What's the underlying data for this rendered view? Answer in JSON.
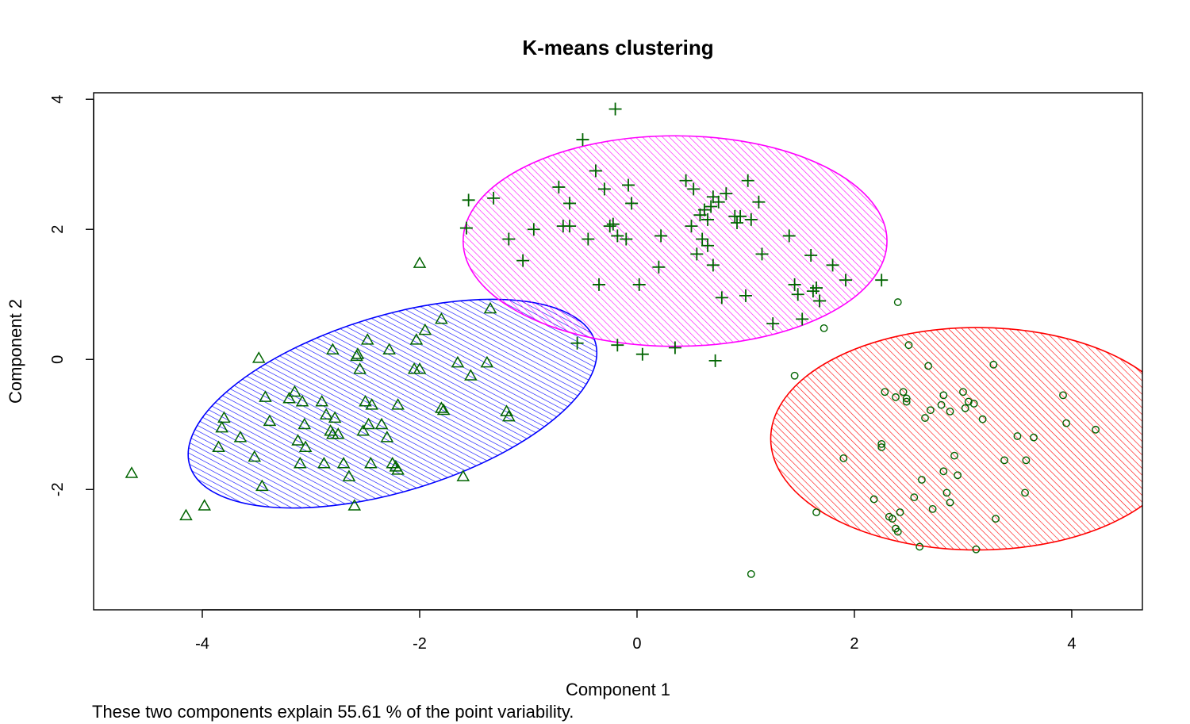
{
  "chart_data": {
    "type": "scatter",
    "title": "K-means clustering",
    "xlabel": "Component 1",
    "ylabel": "Component 2",
    "caption": "These two components explain 55.61 % of the point variability.",
    "xlim": [
      -5.0,
      4.65
    ],
    "ylim": [
      -3.85,
      4.1
    ],
    "xticks": [
      -4,
      -2,
      0,
      2,
      4
    ],
    "yticks": [
      -2,
      0,
      2,
      4
    ],
    "xtick_labels": [
      "-4",
      "-2",
      "0",
      "2",
      "4"
    ],
    "ytick_labels": [
      "-2",
      "0",
      "2",
      "4"
    ],
    "grid": false,
    "legend": "none",
    "point_color": "#006400",
    "clusters": [
      {
        "marker": "triangle",
        "ellipse_color": "#0000ff",
        "ellipse": {
          "cx": -2.25,
          "cy": -0.68,
          "rx": 1.95,
          "ry": 1.35,
          "angle_deg": 17
        },
        "points": [
          [
            -4.65,
            -1.75
          ],
          [
            -4.15,
            -2.4
          ],
          [
            -3.98,
            -2.25
          ],
          [
            -3.85,
            -1.35
          ],
          [
            -3.82,
            -1.05
          ],
          [
            -3.8,
            -0.9
          ],
          [
            -3.65,
            -1.2
          ],
          [
            -3.52,
            -1.5
          ],
          [
            -3.48,
            0.02
          ],
          [
            -3.45,
            -1.95
          ],
          [
            -3.42,
            -0.58
          ],
          [
            -3.38,
            -0.95
          ],
          [
            -3.2,
            -0.6
          ],
          [
            -3.15,
            -0.5
          ],
          [
            -3.12,
            -1.25
          ],
          [
            -3.1,
            -1.6
          ],
          [
            -3.08,
            -0.65
          ],
          [
            -3.06,
            -1.0
          ],
          [
            -3.05,
            -1.35
          ],
          [
            -2.9,
            -0.65
          ],
          [
            -2.88,
            -1.6
          ],
          [
            -2.86,
            -0.85
          ],
          [
            -2.82,
            -1.1
          ],
          [
            -2.8,
            0.15
          ],
          [
            -2.8,
            -1.15
          ],
          [
            -2.78,
            -0.9
          ],
          [
            -2.75,
            -1.15
          ],
          [
            -2.7,
            -1.6
          ],
          [
            -2.65,
            -1.8
          ],
          [
            -2.6,
            -2.25
          ],
          [
            -2.58,
            0.05
          ],
          [
            -2.57,
            0.08
          ],
          [
            -2.55,
            -0.15
          ],
          [
            -2.52,
            -1.1
          ],
          [
            -2.5,
            -0.65
          ],
          [
            -2.48,
            0.3
          ],
          [
            -2.47,
            -1.0
          ],
          [
            -2.45,
            -1.6
          ],
          [
            -2.44,
            -0.7
          ],
          [
            -2.35,
            -1.0
          ],
          [
            -2.3,
            -1.2
          ],
          [
            -2.28,
            0.15
          ],
          [
            -2.25,
            -1.6
          ],
          [
            -2.2,
            -1.7
          ],
          [
            -2.22,
            -1.65
          ],
          [
            -2.05,
            -0.15
          ],
          [
            -2.2,
            -0.7
          ],
          [
            -2.03,
            0.3
          ],
          [
            -2.0,
            1.48
          ],
          [
            -2.0,
            -0.15
          ],
          [
            -1.95,
            0.45
          ],
          [
            -1.8,
            0.62
          ],
          [
            -1.8,
            -0.75
          ],
          [
            -1.78,
            -0.78
          ],
          [
            -1.65,
            -0.05
          ],
          [
            -1.6,
            -1.8
          ],
          [
            -1.53,
            -0.25
          ],
          [
            -1.38,
            -0.05
          ],
          [
            -1.35,
            0.78
          ],
          [
            -1.2,
            -0.8
          ],
          [
            -1.18,
            -0.88
          ]
        ]
      },
      {
        "marker": "plus",
        "ellipse_color": "#ff00ff",
        "ellipse": {
          "cx": 0.35,
          "cy": 1.82,
          "rx": 1.95,
          "ry": 1.95,
          "angle_deg": 0,
          "ry_scale": 0.83
        },
        "points": [
          [
            -0.2,
            3.85
          ],
          [
            -0.5,
            3.38
          ],
          [
            -0.38,
            2.9
          ],
          [
            -0.3,
            2.62
          ],
          [
            -0.08,
            2.68
          ],
          [
            -0.72,
            2.65
          ],
          [
            -0.62,
            2.4
          ],
          [
            -0.05,
            2.4
          ],
          [
            -1.55,
            2.45
          ],
          [
            -1.32,
            2.48
          ],
          [
            -1.57,
            2.02
          ],
          [
            -0.68,
            2.05
          ],
          [
            -0.25,
            2.05
          ],
          [
            -0.22,
            2.08
          ],
          [
            -0.18,
            1.9
          ],
          [
            -0.1,
            1.85
          ],
          [
            -0.45,
            1.85
          ],
          [
            -0.95,
            2.0
          ],
          [
            -0.62,
            2.05
          ],
          [
            -1.18,
            1.85
          ],
          [
            -1.05,
            1.52
          ],
          [
            -0.35,
            1.15
          ],
          [
            0.02,
            1.15
          ],
          [
            -0.55,
            0.25
          ],
          [
            -0.18,
            0.22
          ],
          [
            0.05,
            0.08
          ],
          [
            0.35,
            0.18
          ],
          [
            0.22,
            1.9
          ],
          [
            0.2,
            1.42
          ],
          [
            0.45,
            2.75
          ],
          [
            0.52,
            2.62
          ],
          [
            0.5,
            2.05
          ],
          [
            0.58,
            2.22
          ],
          [
            0.62,
            2.3
          ],
          [
            0.65,
            2.15
          ],
          [
            0.6,
            1.85
          ],
          [
            0.65,
            1.75
          ],
          [
            0.7,
            2.5
          ],
          [
            0.75,
            2.42
          ],
          [
            0.68,
            2.35
          ],
          [
            0.55,
            1.62
          ],
          [
            0.7,
            1.45
          ],
          [
            0.78,
            0.95
          ],
          [
            0.72,
            -0.02
          ],
          [
            0.82,
            2.55
          ],
          [
            0.9,
            2.2
          ],
          [
            0.92,
            2.1
          ],
          [
            0.95,
            2.2
          ],
          [
            1.02,
            2.75
          ],
          [
            1.05,
            2.15
          ],
          [
            1.12,
            2.42
          ],
          [
            1.15,
            1.62
          ],
          [
            1.0,
            0.98
          ],
          [
            1.25,
            0.55
          ],
          [
            1.4,
            1.9
          ],
          [
            1.45,
            1.15
          ],
          [
            1.48,
            1.0
          ],
          [
            1.52,
            0.62
          ],
          [
            1.6,
            1.6
          ],
          [
            1.65,
            1.1
          ],
          [
            1.68,
            0.9
          ],
          [
            1.62,
            1.05
          ],
          [
            1.8,
            1.45
          ],
          [
            1.92,
            1.22
          ],
          [
            2.25,
            1.22
          ]
        ]
      },
      {
        "marker": "circle",
        "ellipse_color": "#ff0000",
        "ellipse": {
          "cx": 3.13,
          "cy": -1.22,
          "rx": 1.9,
          "ry": 1.9,
          "angle_deg": 0,
          "ry_scale": 0.9
        },
        "points": [
          [
            1.05,
            -3.3
          ],
          [
            1.45,
            -0.25
          ],
          [
            1.65,
            -2.35
          ],
          [
            1.72,
            0.48
          ],
          [
            1.9,
            -1.52
          ],
          [
            2.18,
            -2.15
          ],
          [
            2.25,
            -1.3
          ],
          [
            2.25,
            -1.35
          ],
          [
            2.28,
            -0.5
          ],
          [
            2.32,
            -2.42
          ],
          [
            2.35,
            -2.45
          ],
          [
            2.38,
            -2.6
          ],
          [
            2.4,
            -2.65
          ],
          [
            2.4,
            0.88
          ],
          [
            2.42,
            -2.35
          ],
          [
            2.38,
            -0.58
          ],
          [
            2.45,
            -0.5
          ],
          [
            2.48,
            -0.65
          ],
          [
            2.48,
            -0.6
          ],
          [
            2.5,
            0.22
          ],
          [
            2.55,
            -2.12
          ],
          [
            2.62,
            -1.85
          ],
          [
            2.65,
            -0.9
          ],
          [
            2.68,
            -0.1
          ],
          [
            2.7,
            -0.78
          ],
          [
            2.72,
            -2.3
          ],
          [
            2.82,
            -0.55
          ],
          [
            2.8,
            -0.7
          ],
          [
            2.82,
            -1.72
          ],
          [
            2.85,
            -2.05
          ],
          [
            2.88,
            -2.2
          ],
          [
            2.88,
            -0.8
          ],
          [
            2.6,
            -2.88
          ],
          [
            2.92,
            -1.48
          ],
          [
            2.95,
            -1.78
          ],
          [
            3.0,
            -0.5
          ],
          [
            3.02,
            -0.75
          ],
          [
            3.05,
            -0.65
          ],
          [
            3.1,
            -0.68
          ],
          [
            3.12,
            -2.92
          ],
          [
            3.18,
            -0.92
          ],
          [
            3.28,
            -0.08
          ],
          [
            3.3,
            -2.45
          ],
          [
            3.38,
            -1.55
          ],
          [
            3.5,
            -1.18
          ],
          [
            3.57,
            -2.05
          ],
          [
            3.58,
            -1.55
          ],
          [
            3.65,
            -1.2
          ],
          [
            3.92,
            -0.55
          ],
          [
            3.95,
            -0.98
          ],
          [
            4.22,
            -1.08
          ]
        ]
      }
    ]
  }
}
